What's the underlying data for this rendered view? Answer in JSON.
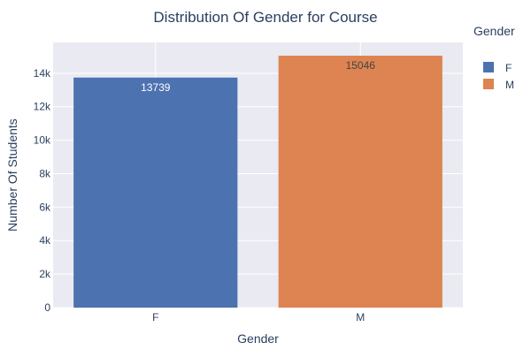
{
  "chart_data": {
    "type": "bar",
    "title": "Distribution Of Gender for Course",
    "xlabel": "Gender",
    "ylabel": "Number Of Students",
    "categories": [
      "F",
      "M"
    ],
    "series": [
      {
        "name": "F",
        "values": [
          13739,
          null
        ],
        "color": "#4c72b0",
        "label_color": "#ffffff"
      },
      {
        "name": "M",
        "values": [
          null,
          15046
        ],
        "color": "#dd8452",
        "label_color": "#444444"
      }
    ],
    "data_labels": [
      "13739",
      "15046"
    ],
    "ylim": [
      0,
      15838
    ],
    "y_ticks": [
      0,
      2000,
      4000,
      6000,
      8000,
      10000,
      12000,
      14000
    ],
    "y_tick_labels": [
      "0",
      "2k",
      "4k",
      "6k",
      "8k",
      "10k",
      "12k",
      "14k"
    ],
    "grid": true,
    "legend": {
      "title": "Gender",
      "placement": "right",
      "entries": [
        {
          "label": "F",
          "color": "#4c72b0"
        },
        {
          "label": "M",
          "color": "#dd8452"
        }
      ]
    },
    "colors": {
      "plot_background": "#eaeaf2",
      "grid": "#ffffff"
    }
  }
}
